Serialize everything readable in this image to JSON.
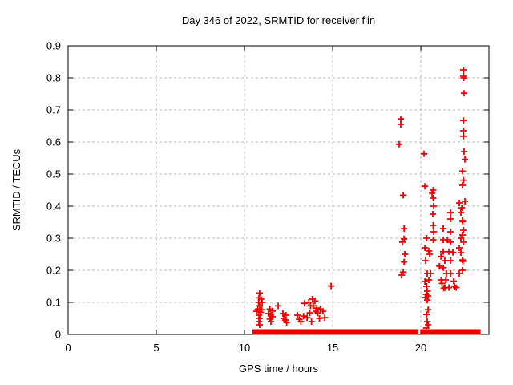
{
  "title": "Day 346 of 2022, SRMTID for receiver flin",
  "axes": {
    "xlabel": "GPS time / hours",
    "ylabel": "SRMTID / TECUs"
  },
  "colors": {
    "marker": "#ee0000",
    "grid": "#b5b5b5",
    "border": "#000000",
    "text": "#000000",
    "background": "#ffffff"
  },
  "chart_data": {
    "type": "scatter",
    "title": "Day 346 of 2022, SRMTID for receiver flin",
    "xlabel": "GPS time / hours",
    "ylabel": "SRMTID / TECUs",
    "xlim": [
      0,
      23.86
    ],
    "ylim": [
      0,
      0.9
    ],
    "xticks": [
      0,
      5,
      10,
      15,
      20
    ],
    "xtick_labels": [
      "0",
      "5",
      "10",
      "15",
      "20"
    ],
    "yticks": [
      0,
      0.1,
      0.2,
      0.3,
      0.4,
      0.5,
      0.6,
      0.7,
      0.8,
      0.9
    ],
    "ytick_labels": [
      "0",
      "0.1",
      "0.2",
      "0.3",
      "0.4",
      "0.5",
      "0.6",
      "0.7",
      "0.8",
      "0.9"
    ],
    "grid": true,
    "legend": false,
    "marker": "plus",
    "marker_color": "#ee0000",
    "points": [
      [
        10.86,
        0.129
      ],
      [
        10.82,
        0.114
      ],
      [
        10.94,
        0.11
      ],
      [
        10.8,
        0.1
      ],
      [
        11.0,
        0.1
      ],
      [
        10.86,
        0.089
      ],
      [
        10.76,
        0.079
      ],
      [
        10.98,
        0.077
      ],
      [
        10.68,
        0.072
      ],
      [
        10.91,
        0.069
      ],
      [
        10.82,
        0.06
      ],
      [
        10.86,
        0.05
      ],
      [
        10.82,
        0.04
      ],
      [
        10.86,
        0.03
      ],
      [
        11.44,
        0.079
      ],
      [
        11.59,
        0.073
      ],
      [
        11.36,
        0.065
      ],
      [
        11.5,
        0.06
      ],
      [
        11.59,
        0.055
      ],
      [
        11.44,
        0.048
      ],
      [
        11.5,
        0.04
      ],
      [
        11.91,
        0.089
      ],
      [
        12.18,
        0.065
      ],
      [
        12.35,
        0.06
      ],
      [
        12.23,
        0.05
      ],
      [
        12.32,
        0.045
      ],
      [
        12.39,
        0.037
      ],
      [
        13.0,
        0.06
      ],
      [
        13.1,
        0.047
      ],
      [
        13.2,
        0.04
      ],
      [
        13.35,
        0.057
      ],
      [
        13.4,
        0.097
      ],
      [
        13.55,
        0.052
      ],
      [
        13.65,
        0.1
      ],
      [
        13.7,
        0.067
      ],
      [
        13.75,
        0.089
      ],
      [
        13.8,
        0.04
      ],
      [
        13.85,
        0.11
      ],
      [
        13.9,
        0.089
      ],
      [
        14.0,
        0.104
      ],
      [
        14.05,
        0.072
      ],
      [
        14.1,
        0.082
      ],
      [
        14.15,
        0.067
      ],
      [
        14.25,
        0.05
      ],
      [
        14.3,
        0.079
      ],
      [
        14.45,
        0.072
      ],
      [
        14.55,
        0.052
      ],
      [
        14.91,
        0.151
      ],
      [
        18.86,
        0.672
      ],
      [
        18.86,
        0.655
      ],
      [
        18.77,
        0.593
      ],
      [
        19.0,
        0.434
      ],
      [
        19.05,
        0.33
      ],
      [
        19.05,
        0.298
      ],
      [
        18.95,
        0.288
      ],
      [
        19.09,
        0.25
      ],
      [
        19.05,
        0.226
      ],
      [
        19.0,
        0.194
      ],
      [
        18.91,
        0.185
      ],
      [
        20.18,
        0.563
      ],
      [
        20.23,
        0.462
      ],
      [
        20.32,
        0.3
      ],
      [
        20.23,
        0.27
      ],
      [
        20.45,
        0.26
      ],
      [
        20.5,
        0.25
      ],
      [
        20.27,
        0.23
      ],
      [
        20.36,
        0.19
      ],
      [
        20.55,
        0.19
      ],
      [
        20.45,
        0.17
      ],
      [
        20.23,
        0.165
      ],
      [
        20.32,
        0.15
      ],
      [
        20.36,
        0.135
      ],
      [
        20.3,
        0.125
      ],
      [
        20.41,
        0.12
      ],
      [
        20.25,
        0.115
      ],
      [
        20.36,
        0.107
      ],
      [
        20.41,
        0.077
      ],
      [
        20.32,
        0.062
      ],
      [
        20.36,
        0.04
      ],
      [
        20.41,
        0.03
      ],
      [
        20.3,
        0.02
      ],
      [
        20.7,
        0.45
      ],
      [
        20.64,
        0.44
      ],
      [
        20.7,
        0.425
      ],
      [
        20.73,
        0.4
      ],
      [
        20.68,
        0.375
      ],
      [
        20.7,
        0.34
      ],
      [
        20.73,
        0.32
      ],
      [
        20.7,
        0.295
      ],
      [
        21.68,
        0.38
      ],
      [
        21.68,
        0.36
      ],
      [
        21.27,
        0.33
      ],
      [
        21.68,
        0.32
      ],
      [
        21.27,
        0.295
      ],
      [
        21.5,
        0.295
      ],
      [
        21.68,
        0.288
      ],
      [
        21.27,
        0.258
      ],
      [
        21.59,
        0.258
      ],
      [
        21.82,
        0.256
      ],
      [
        21.14,
        0.243
      ],
      [
        21.36,
        0.23
      ],
      [
        21.68,
        0.23
      ],
      [
        21.05,
        0.213
      ],
      [
        21.27,
        0.208
      ],
      [
        21.45,
        0.19
      ],
      [
        21.68,
        0.19
      ],
      [
        21.41,
        0.17
      ],
      [
        21.86,
        0.166
      ],
      [
        21.15,
        0.17
      ],
      [
        21.2,
        0.159
      ],
      [
        21.36,
        0.146
      ],
      [
        21.59,
        0.146
      ],
      [
        21.3,
        0.144
      ],
      [
        22.41,
        0.825
      ],
      [
        22.41,
        0.805
      ],
      [
        22.43,
        0.8
      ],
      [
        22.45,
        0.752
      ],
      [
        22.41,
        0.667
      ],
      [
        22.41,
        0.635
      ],
      [
        22.41,
        0.618
      ],
      [
        22.45,
        0.57
      ],
      [
        22.5,
        0.546
      ],
      [
        22.36,
        0.509
      ],
      [
        22.41,
        0.481
      ],
      [
        22.36,
        0.465
      ],
      [
        22.5,
        0.415
      ],
      [
        22.18,
        0.41
      ],
      [
        22.32,
        0.395
      ],
      [
        22.27,
        0.38
      ],
      [
        22.36,
        0.355
      ],
      [
        22.38,
        0.352
      ],
      [
        22.41,
        0.325
      ],
      [
        22.36,
        0.31
      ],
      [
        22.27,
        0.3
      ],
      [
        22.41,
        0.288
      ],
      [
        22.18,
        0.27
      ],
      [
        22.27,
        0.255
      ],
      [
        22.36,
        0.232
      ],
      [
        22.39,
        0.228
      ],
      [
        22.36,
        0.2
      ],
      [
        22.18,
        0.19
      ],
      [
        21.91,
        0.15
      ],
      [
        22.0,
        0.146
      ]
    ],
    "baseline_segments": [
      [
        10.59,
        10.77
      ],
      [
        10.95,
        11.82
      ],
      [
        11.91,
        12.14
      ],
      [
        12.23,
        13.14
      ],
      [
        13.23,
        13.5
      ],
      [
        13.59,
        13.86
      ],
      [
        13.95,
        14.14
      ],
      [
        14.27,
        14.36
      ],
      [
        14.5,
        14.68
      ],
      [
        14.82,
        14.91
      ],
      [
        15.09,
        15.27
      ],
      [
        15.45,
        15.55
      ],
      [
        15.77,
        15.86
      ],
      [
        16.0,
        16.27
      ],
      [
        16.4,
        16.5
      ],
      [
        16.68,
        17.18
      ],
      [
        17.36,
        17.73
      ],
      [
        17.9,
        18.27
      ],
      [
        18.4,
        18.77
      ],
      [
        18.9,
        19.27
      ],
      [
        19.45,
        19.73
      ],
      [
        20.1,
        20.35
      ],
      [
        20.45,
        21.2
      ],
      [
        21.3,
        21.6
      ],
      [
        21.7,
        21.9
      ],
      [
        22.0,
        22.7
      ],
      [
        22.9,
        23.05
      ],
      [
        23.15,
        23.25
      ]
    ]
  }
}
